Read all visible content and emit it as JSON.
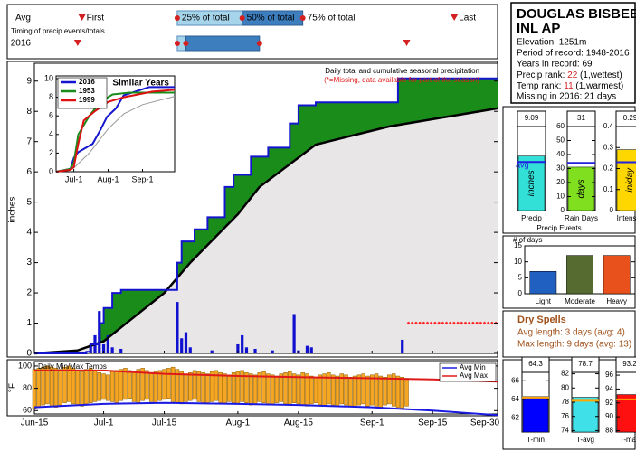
{
  "station": {
    "name_lines": [
      "DOUGLAS BISBEE",
      "INL AP"
    ],
    "lines": [
      "Elevation: 1251m",
      "Period of record: 1948-2016",
      "Years in record: 69"
    ],
    "precip_rank": {
      "label": "Precip rank:",
      "value": 22,
      "note": "(1,wettest)"
    },
    "temp_rank": {
      "label": "Temp rank:",
      "value": 11,
      "note": "(1,warmest)"
    },
    "missing": "Missing in 2016: 21 days"
  },
  "precip_events_title": "Precip Events",
  "dry_spells": {
    "title": "Dry Spells",
    "lines": [
      "Avg length: 3 days (avg: 4)",
      "Max length: 9 days (avg: 13)"
    ]
  },
  "chart_data": [
    {
      "type": "timing",
      "caption": "Timing of precip events/totals",
      "rows": [
        "Avg",
        "2016"
      ],
      "marker_labels": [
        "First",
        "25% of total",
        "50% of total",
        "75% of total",
        "Last"
      ],
      "xlim": [
        "Jun-15",
        "Sep-30"
      ],
      "avg": [
        "Jun-26",
        "Jul-18",
        "Aug-2",
        "Aug-16",
        "Sep-20"
      ],
      "year": [
        "Jun-25",
        "Jul-18",
        "Jul-20",
        "Aug-6",
        "Sep-9"
      ],
      "light_color": "#a6d4ea",
      "dark_color": "#3d7ebf",
      "marker_color": "#d42020"
    },
    {
      "type": "area",
      "title": "Daily total and cumulative seasonal precipitation",
      "note": "(*=Missing, data available for part of the season)",
      "ylabel": "inches",
      "xlim": [
        "Jun-15",
        "Sep-30"
      ],
      "ylim": [
        0,
        9.5
      ],
      "yticks": [
        0,
        1,
        2,
        3,
        4,
        5,
        6,
        7,
        8,
        9
      ],
      "above_color": "#1a8c1a",
      "below_color": "#e8e6e6",
      "series": [
        {
          "color": "#1515d0",
          "x": [
            "Jun-15",
            "Jun-27",
            "Jun-28",
            "Jun-30",
            "Jul-1",
            "Jul-3",
            "Jul-5",
            "Jul-18",
            "Jul-19",
            "Jul-22",
            "Jul-25",
            "Jul-29",
            "Jul-31",
            "Aug-4",
            "Aug-8",
            "Aug-13",
            "Aug-15",
            "Aug-19",
            "Sep-7",
            "Sep-30"
          ],
          "values": [
            0,
            0.05,
            0.3,
            1.0,
            1.5,
            2.0,
            2.1,
            3.0,
            3.7,
            4.1,
            4.5,
            5.5,
            5.9,
            6.5,
            6.8,
            7.6,
            8.2,
            8.3,
            9.09,
            9.09
          ]
        },
        {
          "color": "#000000",
          "x": [
            "Jun-15",
            "Jun-25",
            "Jul-1",
            "Jul-8",
            "Jul-15",
            "Jul-21",
            "Aug-1",
            "Aug-6",
            "Aug-19",
            "Sep-5",
            "Sep-30"
          ],
          "values": [
            0,
            0.1,
            0.4,
            1.2,
            2.0,
            3.0,
            4.6,
            5.5,
            6.9,
            7.5,
            8.1
          ]
        }
      ],
      "daily": {
        "color": "#1010d0",
        "x": [
          "Jun-28",
          "Jun-29",
          "Jun-30",
          "Jul-1",
          "Jul-2",
          "Jul-3",
          "Jul-5",
          "Jul-18",
          "Jul-19",
          "Jul-20",
          "Jul-21",
          "Jul-26",
          "Aug-1",
          "Aug-2",
          "Aug-3",
          "Aug-5",
          "Aug-9",
          "Aug-14",
          "Aug-15",
          "Aug-17",
          "Aug-18",
          "Sep-8"
        ],
        "values": [
          0.3,
          0.6,
          1.4,
          0.3,
          0.6,
          0.2,
          0.15,
          1.7,
          0.5,
          0.7,
          0.2,
          0.1,
          0.3,
          0.6,
          0.2,
          0.15,
          0.1,
          1.3,
          0.1,
          0.25,
          0.2,
          0.45
        ]
      },
      "missing": {
        "from": "Sep-9",
        "to": "Sep-30",
        "level": 1,
        "color": "#ff2020"
      }
    },
    {
      "type": "line",
      "title": "Similar Years",
      "xlim": [
        "Jun-15",
        "Sep-30"
      ],
      "xticks": [
        "Jul-1",
        "Aug-1",
        "Sep-1"
      ],
      "ylim": [
        0,
        10
      ],
      "yticks": [
        0,
        2,
        4,
        6,
        8,
        10
      ],
      "series": [
        {
          "color": "#999999",
          "x": [
            "Jun-15",
            "Jul-1",
            "Jul-15",
            "Aug-1",
            "Aug-15",
            "Sep-1",
            "Sep-30"
          ],
          "values": [
            0,
            0.4,
            2.0,
            4.6,
            6.2,
            7.2,
            8.1
          ]
        },
        {
          "name": "2016",
          "color": "#1515d0",
          "x": [
            "Jun-15",
            "Jun-28",
            "Jul-1",
            "Jul-5",
            "Jul-18",
            "Jul-25",
            "Jul-31",
            "Aug-8",
            "Aug-15",
            "Sep-7",
            "Sep-30"
          ],
          "values": [
            0,
            0.3,
            1.5,
            2.1,
            3.0,
            4.5,
            5.9,
            6.8,
            8.2,
            9.09,
            9.09
          ]
        },
        {
          "name": "1953",
          "color": "#1a8c1a",
          "x": [
            "Jun-15",
            "Jun-28",
            "Jul-1",
            "Jul-5",
            "Jul-15",
            "Jul-25",
            "Aug-5",
            "Aug-20",
            "Sep-30"
          ],
          "values": [
            0,
            0.3,
            1.0,
            4.0,
            6.0,
            7.5,
            8.3,
            8.5,
            8.5
          ]
        },
        {
          "name": "1999",
          "color": "#dd1111",
          "x": [
            "Jun-15",
            "Jun-28",
            "Jul-1",
            "Jul-5",
            "Jul-10",
            "Jul-20",
            "Aug-1",
            "Aug-15",
            "Sep-10",
            "Sep-30"
          ],
          "values": [
            0,
            0.2,
            0.5,
            3.0,
            5.5,
            6.5,
            7.5,
            8.0,
            8.6,
            8.8
          ]
        }
      ]
    },
    {
      "type": "range_bar",
      "title": "Daily Min/Max Temps",
      "ylabel": "°F",
      "xlim": [
        "Jun-15",
        "Sep-30"
      ],
      "xticks": [
        "Jun-15",
        "Jul-1",
        "Jul-15",
        "Aug-1",
        "Aug-15",
        "Sep-1",
        "Sep-15",
        "Sep-30"
      ],
      "ylim": [
        57,
        104
      ],
      "yticks": [
        60,
        80,
        100
      ],
      "color": "#f5a623",
      "x": [
        "Jun-15",
        "Jun-16",
        "Jun-17",
        "Jun-18",
        "Jun-19",
        "Jun-20",
        "Jun-21",
        "Jun-22",
        "Jun-23",
        "Jun-24",
        "Jun-25",
        "Jun-26",
        "Jun-27",
        "Jun-28",
        "Jun-29",
        "Jun-30",
        "Jul-1",
        "Jul-2",
        "Jul-3",
        "Jul-4",
        "Jul-5",
        "Jul-6",
        "Jul-7",
        "Jul-8",
        "Jul-9",
        "Jul-10",
        "Jul-11",
        "Jul-12",
        "Jul-13",
        "Jul-14",
        "Jul-15",
        "Jul-16",
        "Jul-17",
        "Jul-18",
        "Jul-19",
        "Jul-20",
        "Jul-21",
        "Jul-22",
        "Jul-23",
        "Jul-24",
        "Jul-25",
        "Jul-26",
        "Jul-27",
        "Jul-28",
        "Jul-29",
        "Jul-30",
        "Jul-31",
        "Aug-1",
        "Aug-2",
        "Aug-3",
        "Aug-4",
        "Aug-5",
        "Aug-6",
        "Aug-7",
        "Aug-8",
        "Aug-9",
        "Aug-10",
        "Aug-11",
        "Aug-12",
        "Aug-13",
        "Aug-14",
        "Aug-15",
        "Aug-16",
        "Aug-17",
        "Aug-18",
        "Aug-19",
        "Aug-20",
        "Aug-21",
        "Aug-22",
        "Aug-23",
        "Aug-24",
        "Aug-25",
        "Aug-26",
        "Aug-27",
        "Aug-28",
        "Aug-29",
        "Aug-30",
        "Aug-31",
        "Sep-1",
        "Sep-2",
        "Sep-3",
        "Sep-4",
        "Sep-5",
        "Sep-6",
        "Sep-7",
        "Sep-8",
        "Sep-9"
      ],
      "high": [
        97,
        98,
        99,
        100,
        99,
        98,
        97,
        99,
        100,
        98,
        96,
        95,
        97,
        98,
        96,
        94,
        93,
        92,
        95,
        96,
        97,
        98,
        96,
        95,
        97,
        98,
        96,
        94,
        95,
        96,
        97,
        98,
        99,
        97,
        95,
        93,
        94,
        96,
        95,
        94,
        93,
        95,
        96,
        94,
        93,
        92,
        94,
        95,
        96,
        94,
        93,
        92,
        94,
        95,
        93,
        92,
        91,
        93,
        94,
        95,
        93,
        92,
        94,
        93,
        91,
        90,
        92,
        93,
        94,
        92,
        91,
        93,
        92,
        90,
        91,
        92,
        93,
        91,
        92,
        93,
        91,
        90,
        92,
        93,
        91,
        90,
        89
      ],
      "low": [
        62,
        63,
        65,
        66,
        64,
        63,
        65,
        67,
        68,
        66,
        65,
        64,
        66,
        67,
        68,
        69,
        70,
        69,
        68,
        67,
        69,
        70,
        71,
        68,
        67,
        69,
        70,
        68,
        67,
        69,
        70,
        71,
        68,
        67,
        66,
        68,
        69,
        70,
        68,
        67,
        66,
        68,
        69,
        67,
        66,
        68,
        67,
        66,
        68,
        67,
        65,
        66,
        68,
        67,
        66,
        65,
        67,
        68,
        66,
        65,
        67,
        66,
        65,
        64,
        66,
        67,
        65,
        64,
        66,
        65,
        64,
        66,
        65,
        64,
        63,
        65,
        66,
        64,
        65,
        64,
        63,
        65,
        66,
        64,
        63,
        62,
        64
      ],
      "series": [
        {
          "name": "Avg Min",
          "color": "#1a1ae0",
          "x": [
            "Jun-15",
            "Jul-1",
            "Jul-15",
            "Aug-1",
            "Aug-15",
            "Sep-1",
            "Sep-15",
            "Sep-30"
          ],
          "values": [
            63,
            66,
            67,
            66,
            65,
            63,
            60,
            56
          ]
        },
        {
          "name": "Avg Max",
          "color": "#e01a1a",
          "x": [
            "Jun-15",
            "Jul-1",
            "Jul-15",
            "Aug-1",
            "Aug-15",
            "Sep-1",
            "Sep-15",
            "Sep-30"
          ],
          "values": [
            96,
            96,
            93,
            91,
            90,
            89,
            88,
            86
          ]
        }
      ]
    },
    {
      "type": "bar",
      "categories": [
        "Precip"
      ],
      "values": [
        9.09
      ],
      "color": "#33e0d8",
      "ylim": [
        0,
        14
      ],
      "yticks": [],
      "avg": 8.1,
      "avg_color": "#2020e0",
      "avg_label": "avg",
      "unit": "inches"
    },
    {
      "type": "bar",
      "categories": [
        "Rain Days"
      ],
      "values": [
        31
      ],
      "color": "#80e020",
      "ylim": [
        0,
        60
      ],
      "yticks": [
        0,
        10,
        20,
        30,
        40,
        50,
        60
      ],
      "avg": 34,
      "avg_color": "#2020e0",
      "unit": "days"
    },
    {
      "type": "bar",
      "categories": [
        "Intensity"
      ],
      "values": [
        0.29
      ],
      "color": "#ffd700",
      "ylim": [
        0,
        0.4
      ],
      "yticks": [
        0,
        0.1,
        0.2,
        0.3,
        0.4
      ],
      "avg": 0.23,
      "avg_color": "#2020e0",
      "unit": "in/day"
    },
    {
      "type": "bar",
      "title": "# of days",
      "categories": [
        "Light",
        "Moderate",
        "Heavy"
      ],
      "values": [
        7,
        12,
        12
      ],
      "colors": [
        "#2060c0",
        "#556b2f",
        "#e8501c"
      ],
      "ylim": [
        0,
        15
      ],
      "yticks": [
        0,
        5,
        10,
        15
      ]
    },
    {
      "type": "bar",
      "categories": [
        "T-min"
      ],
      "values": [
        64.3
      ],
      "color": "#0000ff",
      "ylim": [
        60.5,
        66.9
      ],
      "yticks": [
        62,
        64,
        66
      ],
      "avg": 64.2,
      "avg_color": "#ffa500"
    },
    {
      "type": "bar",
      "categories": [
        "T-avg"
      ],
      "values": [
        78.7
      ],
      "color": "#40e0e8",
      "ylim": [
        73.8,
        82.2
      ],
      "yticks": [
        74,
        76,
        78,
        80,
        82
      ],
      "avg": 78.2,
      "avg_color": "#ffa500"
    },
    {
      "type": "bar",
      "categories": [
        "T-max"
      ],
      "values": [
        93.2
      ],
      "color": "#ff1010",
      "ylim": [
        87.8,
        96.4
      ],
      "yticks": [
        88,
        90,
        92,
        94,
        96
      ],
      "avg": 92.5,
      "avg_color": "#ffa500"
    }
  ]
}
